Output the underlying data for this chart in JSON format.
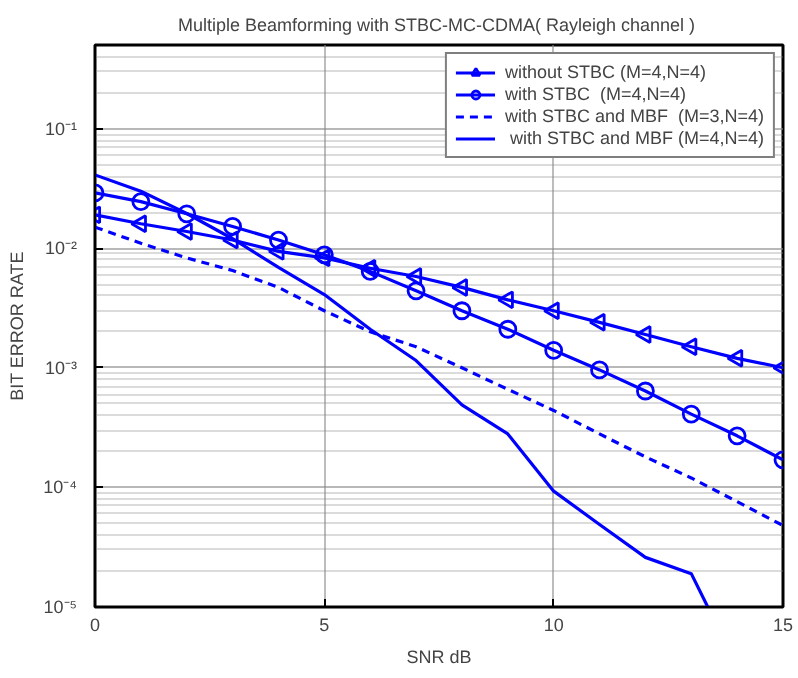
{
  "chart_data": {
    "type": "line",
    "title": "Multiple Beamforming with  STBC-MC-CDMA( Rayleigh channel )",
    "xlabel": "SNR dB",
    "ylabel": "BIT ERROR RATE",
    "xlim": [
      0,
      15
    ],
    "xticks": [
      0,
      5,
      10,
      15
    ],
    "ylim": [
      1e-05,
      0.5
    ],
    "yticks": [
      {
        "value": 1e-05,
        "label": "10⁻⁵"
      },
      {
        "value": 0.0001,
        "label": "10⁻⁴"
      },
      {
        "value": 0.001,
        "label": "10⁻³"
      },
      {
        "value": 0.01,
        "label": "10⁻²"
      },
      {
        "value": 0.1,
        "label": "10⁻¹"
      }
    ],
    "log": "y",
    "grid": true,
    "legend": "top right",
    "series": [
      {
        "name": "without STBC (M=4,N=4)",
        "color": "#0000ff",
        "marker": "triangle",
        "line_style": "solid",
        "x": [
          0,
          1,
          2,
          3,
          4,
          5,
          6,
          7,
          8,
          9,
          10,
          11,
          12,
          13,
          14,
          15
        ],
        "values": [
          0.019,
          0.016,
          0.0138,
          0.0117,
          0.0094,
          0.0083,
          0.0068,
          0.0058,
          0.0047,
          0.0037,
          0.003,
          0.0024,
          0.0019,
          0.0015,
          0.0012,
          0.001
        ]
      },
      {
        "name": "with STBC  (M=4,N=4)",
        "color": "#0000ff",
        "marker": "circle",
        "line_style": "solid",
        "x": [
          0,
          1,
          2,
          3,
          4,
          5,
          6,
          7,
          8,
          9,
          10,
          11,
          12,
          13,
          14,
          15
        ],
        "values": [
          0.029,
          0.0245,
          0.0194,
          0.0152,
          0.0117,
          0.0088,
          0.0064,
          0.0044,
          0.003,
          0.0021,
          0.0014,
          0.00096,
          0.00064,
          0.00041,
          0.00027,
          0.00017
        ]
      },
      {
        "name": "with STBC and MBF  (M=3,N=4)",
        "color": "#0000ff",
        "marker": "none",
        "line_style": "dashed",
        "x": [
          0,
          1,
          2,
          3,
          4,
          5,
          6,
          7,
          8,
          9,
          10,
          11,
          12,
          13,
          14,
          15
        ],
        "values": [
          0.015,
          0.011,
          0.0083,
          0.0065,
          0.0047,
          0.003,
          0.002,
          0.0015,
          0.001,
          0.00066,
          0.00044,
          0.00028,
          0.00018,
          0.00012,
          7.6e-05,
          4.8e-05
        ]
      },
      {
        "name": " with STBC and MBF (M=4,N=4)",
        "color": "#0000ff",
        "marker": "none",
        "line_style": "solid",
        "x": [
          0,
          1,
          2,
          3,
          4,
          5,
          6,
          7,
          8,
          9,
          10,
          11,
          12,
          13,
          13.36
        ],
        "values": [
          0.041,
          0.03,
          0.0195,
          0.012,
          0.0069,
          0.0041,
          0.0021,
          0.00115,
          0.00049,
          0.00028,
          9.3e-05,
          4.9e-05,
          2.6e-05,
          1.9e-05,
          1e-05
        ]
      }
    ]
  }
}
